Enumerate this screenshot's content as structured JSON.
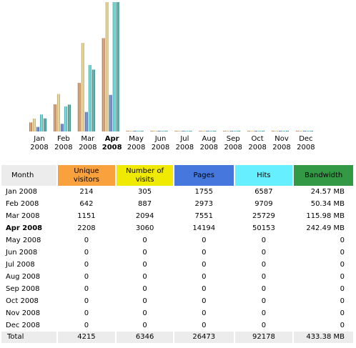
{
  "colors": {
    "unique_visitors": "#f8a13d",
    "number_of_visits": "#f0ea00",
    "pages": "#4677dc",
    "hits": "#66f0ff",
    "bandwidth": "#339944",
    "header_gray": "#ececec"
  },
  "chart_data": {
    "type": "bar",
    "categories": [
      [
        "Jan",
        "2008"
      ],
      [
        "Feb",
        "2008"
      ],
      [
        "Mar",
        "2008"
      ],
      [
        "Apr",
        "2008"
      ],
      [
        "May",
        "2008"
      ],
      [
        "Jun",
        "2008"
      ],
      [
        "Jul",
        "2008"
      ],
      [
        "Aug",
        "2008"
      ],
      [
        "Sep",
        "2008"
      ],
      [
        "Oct",
        "2008"
      ],
      [
        "Nov",
        "2008"
      ],
      [
        "Dec",
        "2008"
      ]
    ],
    "current_index": 3,
    "series": [
      {
        "key": "unique_visitors",
        "values": [
          214,
          642,
          1151,
          2208,
          0,
          0,
          0,
          0,
          0,
          0,
          0,
          0
        ]
      },
      {
        "key": "number_of_visits",
        "values": [
          305,
          887,
          2094,
          3060,
          0,
          0,
          0,
          0,
          0,
          0,
          0,
          0
        ]
      },
      {
        "key": "pages",
        "values": [
          1755,
          2973,
          7551,
          14194,
          0,
          0,
          0,
          0,
          0,
          0,
          0,
          0
        ]
      },
      {
        "key": "hits",
        "values": [
          6587,
          9709,
          25729,
          50153,
          0,
          0,
          0,
          0,
          0,
          0,
          0,
          0
        ]
      },
      {
        "key": "bandwidth",
        "values": [
          24.57,
          50.34,
          115.98,
          242.49,
          0,
          0,
          0,
          0,
          0,
          0,
          0,
          0
        ]
      }
    ],
    "scale_groups": [
      [
        "unique_visitors",
        "number_of_visits"
      ],
      [
        "pages",
        "hits"
      ],
      [
        "bandwidth"
      ]
    ]
  },
  "table": {
    "headers": {
      "month": "Month",
      "unique_visitors": [
        "Unique",
        "visitors"
      ],
      "number_of_visits": [
        "Number of",
        "visits"
      ],
      "pages": "Pages",
      "hits": "Hits",
      "bandwidth": "Bandwidth"
    },
    "rows": [
      {
        "month": "Jan 2008",
        "uv": "214",
        "nv": "305",
        "pages": "1755",
        "hits": "6587",
        "bw": "24.57 MB"
      },
      {
        "month": "Feb 2008",
        "uv": "642",
        "nv": "887",
        "pages": "2973",
        "hits": "9709",
        "bw": "50.34 MB"
      },
      {
        "month": "Mar 2008",
        "uv": "1151",
        "nv": "2094",
        "pages": "7551",
        "hits": "25729",
        "bw": "115.98 MB"
      },
      {
        "month": "Apr 2008",
        "uv": "2208",
        "nv": "3060",
        "pages": "14194",
        "hits": "50153",
        "bw": "242.49 MB"
      },
      {
        "month": "May 2008",
        "uv": "0",
        "nv": "0",
        "pages": "0",
        "hits": "0",
        "bw": "0"
      },
      {
        "month": "Jun 2008",
        "uv": "0",
        "nv": "0",
        "pages": "0",
        "hits": "0",
        "bw": "0"
      },
      {
        "month": "Jul 2008",
        "uv": "0",
        "nv": "0",
        "pages": "0",
        "hits": "0",
        "bw": "0"
      },
      {
        "month": "Aug 2008",
        "uv": "0",
        "nv": "0",
        "pages": "0",
        "hits": "0",
        "bw": "0"
      },
      {
        "month": "Sep 2008",
        "uv": "0",
        "nv": "0",
        "pages": "0",
        "hits": "0",
        "bw": "0"
      },
      {
        "month": "Oct 2008",
        "uv": "0",
        "nv": "0",
        "pages": "0",
        "hits": "0",
        "bw": "0"
      },
      {
        "month": "Nov 2008",
        "uv": "0",
        "nv": "0",
        "pages": "0",
        "hits": "0",
        "bw": "0"
      },
      {
        "month": "Dec 2008",
        "uv": "0",
        "nv": "0",
        "pages": "0",
        "hits": "0",
        "bw": "0"
      }
    ],
    "total": {
      "month": "Total",
      "uv": "4215",
      "nv": "6346",
      "pages": "26473",
      "hits": "92178",
      "bw": "433.38 MB"
    }
  }
}
